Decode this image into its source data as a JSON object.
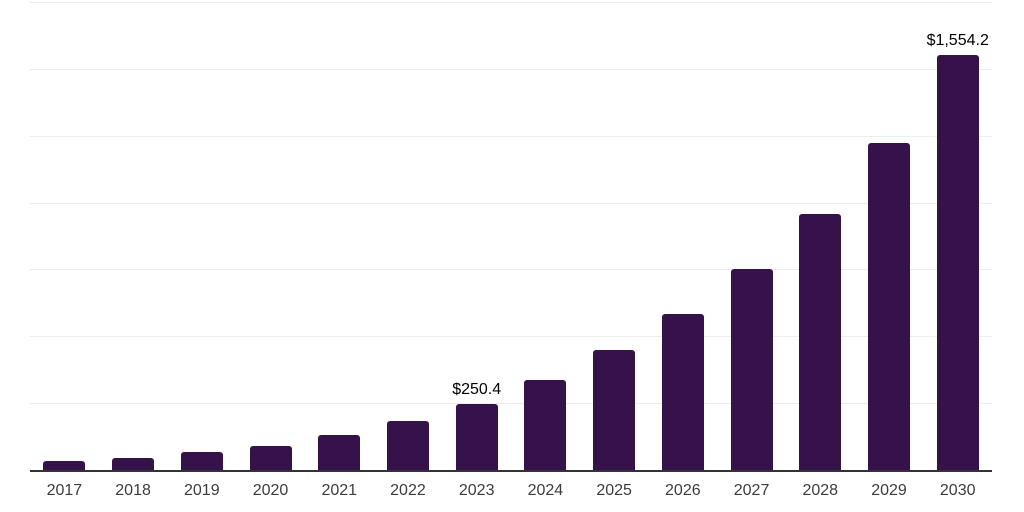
{
  "chart_data": {
    "type": "bar",
    "title": "",
    "xlabel": "",
    "ylabel": "",
    "categories": [
      "2017",
      "2018",
      "2019",
      "2020",
      "2021",
      "2022",
      "2023",
      "2024",
      "2025",
      "2026",
      "2027",
      "2028",
      "2029",
      "2030"
    ],
    "values": [
      36,
      48,
      70,
      95,
      135,
      186,
      250.4,
      339,
      451,
      589,
      756,
      962,
      1228,
      1554.2
    ],
    "value_labels": {
      "2023": "$250.4",
      "2030": "$1,554.2"
    },
    "ylim": [
      0,
      1750
    ],
    "gridline_step": 250,
    "grid": true,
    "legend": false,
    "colors": {
      "bar": "#35124A",
      "gridline": "#ededed",
      "axis_line": "#333333",
      "tick_label": "#3c3c3c",
      "data_label": "#000000",
      "background": "#ffffff"
    }
  }
}
